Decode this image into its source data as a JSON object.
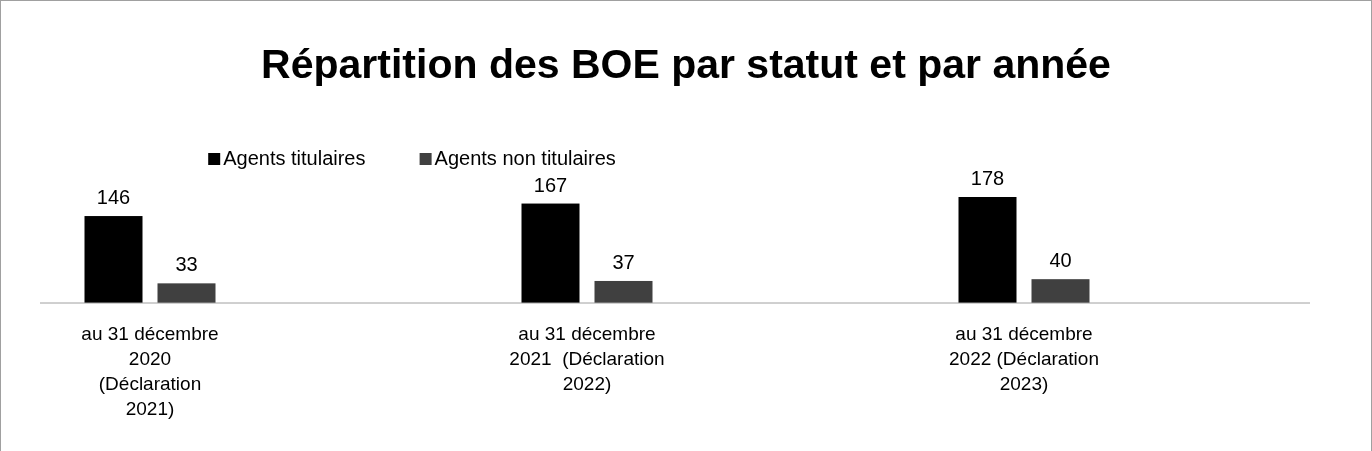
{
  "chart_data": {
    "type": "bar",
    "title": "Répartition des BOE par statut et par année",
    "categories": [
      "au 31 décembre\n2020\n(Déclaration\n2021)",
      "au 31 décembre\n2021  (Déclaration\n2022)",
      "au 31 décembre\n2022 (Déclaration\n2023)"
    ],
    "series": [
      {
        "name": "Agents titulaires",
        "color": "#000000",
        "values": [
          146,
          167,
          178
        ]
      },
      {
        "name": "Agents non titulaires",
        "color": "#404040",
        "values": [
          33,
          37,
          40
        ]
      }
    ],
    "data_labels": true,
    "legend": "top"
  }
}
